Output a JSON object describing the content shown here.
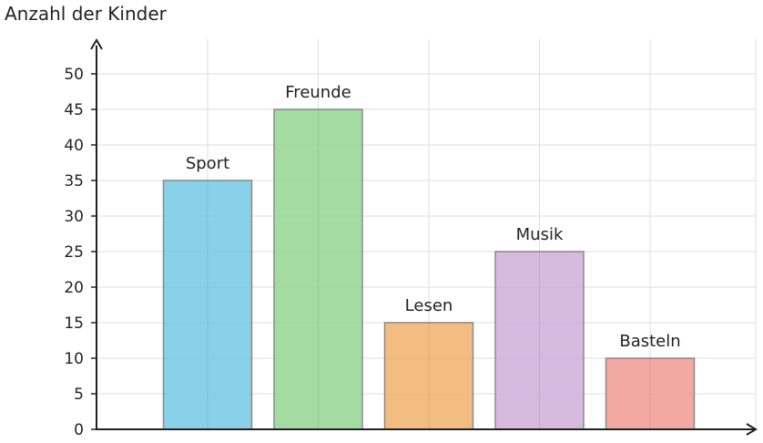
{
  "chart_data": {
    "type": "bar",
    "title": "",
    "xlabel": "",
    "ylabel": "Anzahl der Kinder",
    "ylim": [
      0,
      50
    ],
    "yticks": [
      0,
      5,
      10,
      15,
      20,
      25,
      30,
      35,
      40,
      45,
      50
    ],
    "grid": true,
    "categories": [
      "Sport",
      "Freunde",
      "Lesen",
      "Musik",
      "Basteln"
    ],
    "values": [
      35,
      45,
      15,
      25,
      10
    ],
    "colors": [
      "#75c8e6",
      "#95d795",
      "#f2b16a",
      "#d1aed9",
      "#f29a92"
    ]
  }
}
